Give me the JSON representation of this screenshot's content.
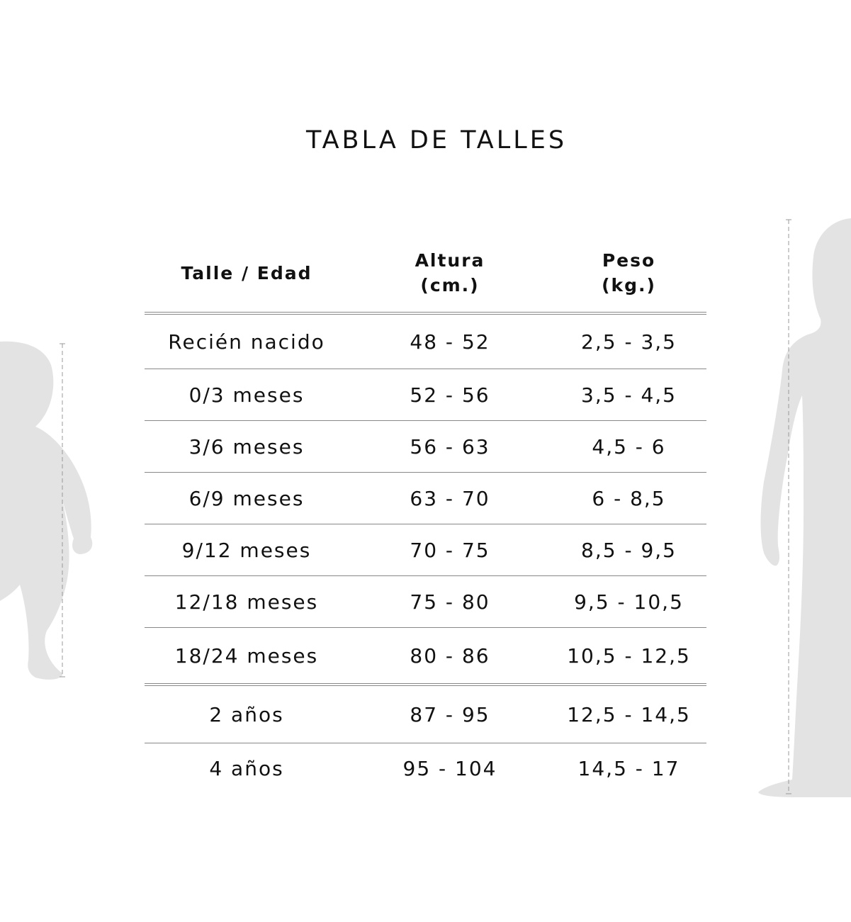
{
  "title": "TABLA DE TALLES",
  "headers": {
    "size_age": "Talle / Edad",
    "height_line1": "Altura",
    "height_line2": "(cm.)",
    "weight_line1": "Peso",
    "weight_line2": "(kg.)"
  },
  "rows": [
    {
      "size": "Recién nacido",
      "height": "48 - 52",
      "weight": "2,5 - 3,5"
    },
    {
      "size": "0/3 meses",
      "height": "52 - 56",
      "weight": "3,5 - 4,5"
    },
    {
      "size": "3/6 meses",
      "height": "56 - 63",
      "weight": "4,5 - 6"
    },
    {
      "size": "6/9 meses",
      "height": "63 - 70",
      "weight": "6 - 8,5"
    },
    {
      "size": "9/12 meses",
      "height": "70 - 75",
      "weight": "8,5 - 9,5"
    },
    {
      "size": "12/18 meses",
      "height": "75 - 80",
      "weight": "9,5 - 10,5"
    },
    {
      "size": "18/24 meses",
      "height": "80 - 86",
      "weight": "10,5 - 12,5"
    },
    {
      "size": "2 años",
      "height": "87 - 95",
      "weight": "12,5 - 14,5"
    },
    {
      "size": "4 años",
      "height": "95 - 104",
      "weight": "14,5 - 17"
    }
  ],
  "colors": {
    "text": "#111111",
    "rule": "#888888",
    "silhouette": "#e3e3e3",
    "measure_line": "#999999"
  },
  "icons": {
    "left": "baby-silhouette-icon",
    "right": "child-silhouette-icon"
  }
}
